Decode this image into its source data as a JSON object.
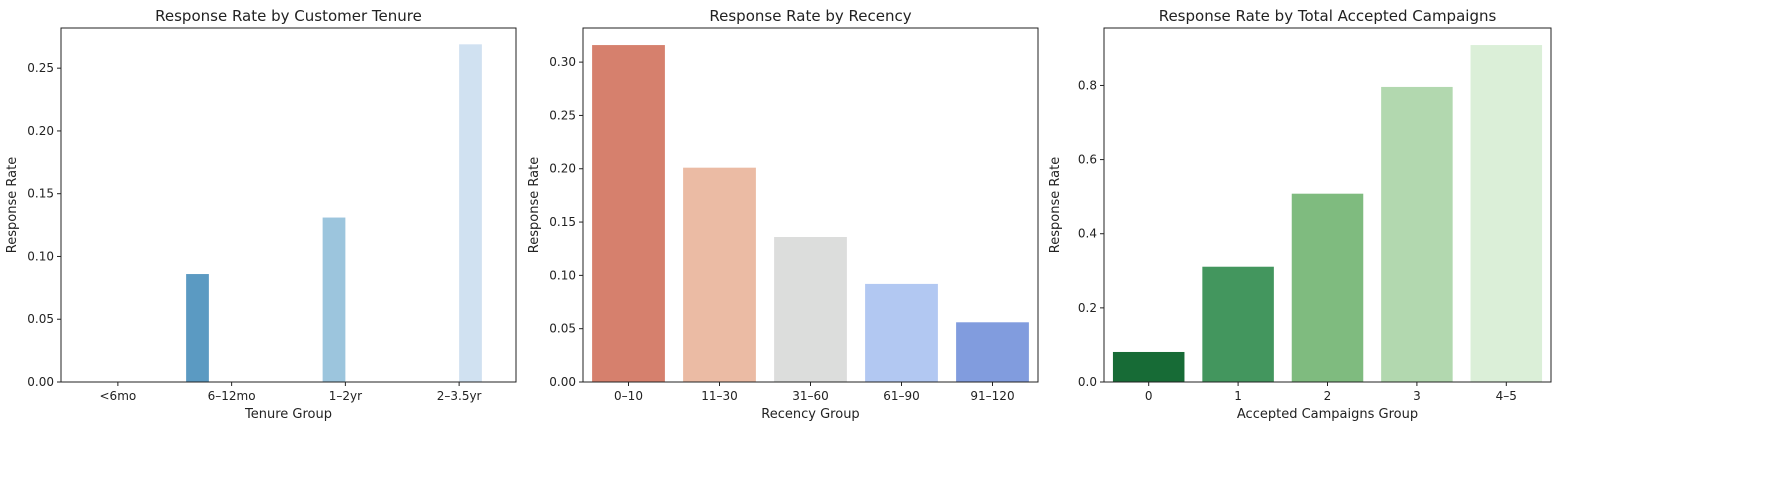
{
  "chart_data": [
    {
      "type": "bar",
      "title": "Response Rate by Customer Tenure",
      "xlabel": "Tenure Group",
      "ylabel": "Response Rate",
      "categories": [
        "<6mo",
        "6–12mo",
        "1–2yr",
        "2–3.5yr"
      ],
      "ylim": [
        0,
        0.282
      ],
      "yticks": [
        "0.00",
        "0.05",
        "0.10",
        "0.15",
        "0.20",
        "0.25"
      ],
      "yticks_values": [
        0,
        0.05,
        0.1,
        0.15,
        0.2,
        0.25
      ],
      "series": [
        {
          "values": [
            null,
            0.086,
            null,
            null
          ],
          "color": "#5b9ac2"
        },
        {
          "values": [
            null,
            null,
            0.131,
            null
          ],
          "color": "#9cc5dd"
        },
        {
          "values": [
            null,
            null,
            null,
            0.269
          ],
          "color": "#d0e1f1"
        }
      ],
      "grouped_slots": 4,
      "grid": false
    },
    {
      "type": "bar",
      "title": "Response Rate by Recency",
      "xlabel": "Recency Group",
      "ylabel": "Response Rate",
      "categories": [
        "0–10",
        "11–30",
        "31–60",
        "61–90",
        "91–120"
      ],
      "values": [
        0.316,
        0.201,
        0.136,
        0.092,
        0.056
      ],
      "colors": [
        "#d6806d",
        "#ebbba4",
        "#dcdddc",
        "#b2c8f2",
        "#819cde"
      ],
      "ylim": [
        0,
        0.332
      ],
      "yticks": [
        "0.00",
        "0.05",
        "0.10",
        "0.15",
        "0.20",
        "0.25",
        "0.30"
      ],
      "yticks_values": [
        0,
        0.05,
        0.1,
        0.15,
        0.2,
        0.25,
        0.3
      ],
      "grid": false
    },
    {
      "type": "bar",
      "title": "Response Rate by Total Accepted Campaigns",
      "xlabel": "Accepted Campaigns Group",
      "ylabel": "Response Rate",
      "categories": [
        "0",
        "1",
        "2",
        "3",
        "4–5"
      ],
      "values": [
        0.081,
        0.311,
        0.508,
        0.796,
        0.909
      ],
      "colors": [
        "#176b36",
        "#43965e",
        "#7fbb7f",
        "#b2d8af",
        "#dbefd8"
      ],
      "ylim": [
        0,
        0.955
      ],
      "yticks": [
        "0.0",
        "0.2",
        "0.4",
        "0.6",
        "0.8"
      ],
      "yticks_values": [
        0,
        0.2,
        0.4,
        0.6,
        0.8
      ],
      "grid": false
    }
  ]
}
